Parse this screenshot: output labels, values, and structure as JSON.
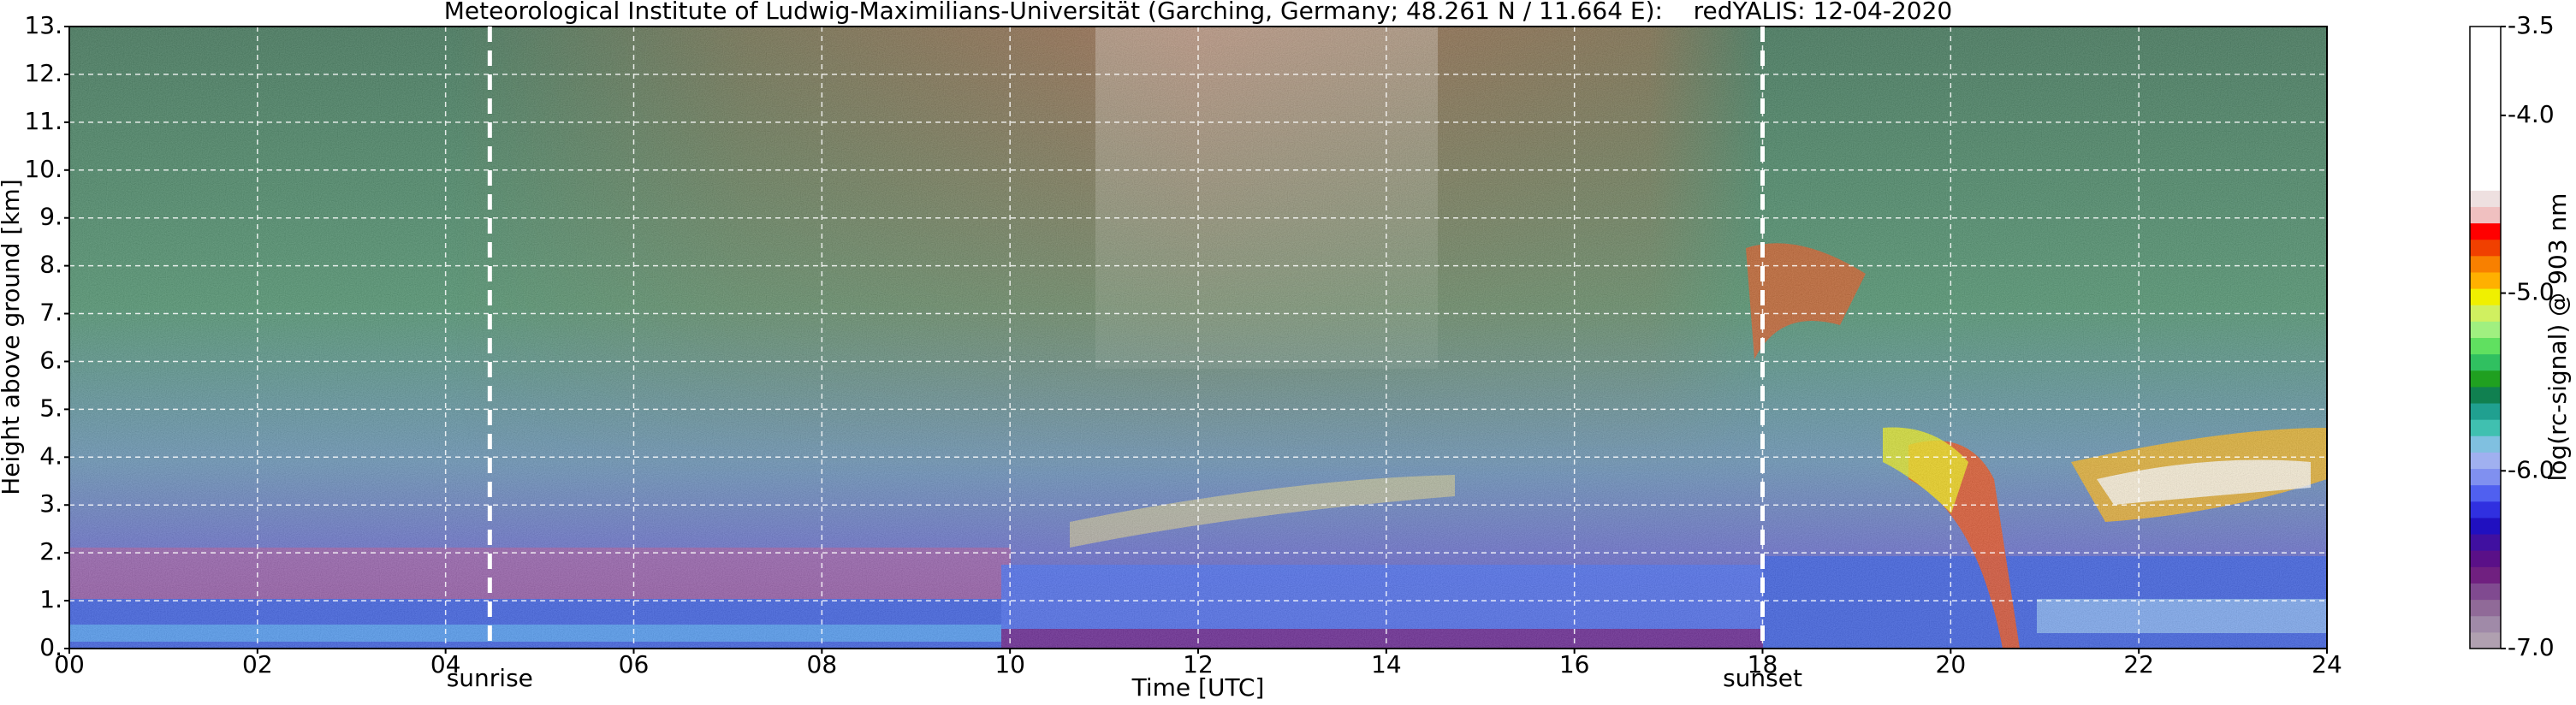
{
  "chart_data": {
    "type": "heatmap",
    "title": "Meteorological Institute of Ludwig-Maximilians-Universität (Garching, Germany; 48.261 N / 11.664 E):    redYALIS: 12-04-2020",
    "x_label": "Time [UTC]",
    "y_label": "Height above ground [km]",
    "xlim": [
      0,
      24
    ],
    "ylim": [
      0,
      13
    ],
    "xticks": [
      {
        "value": 0,
        "label": "00"
      },
      {
        "value": 2,
        "label": "02"
      },
      {
        "value": 4,
        "label": "04"
      },
      {
        "value": 6,
        "label": "06"
      },
      {
        "value": 8,
        "label": "08"
      },
      10,
      12,
      14,
      16,
      18,
      20,
      22,
      24
    ],
    "yticks": [
      {
        "value": 0,
        "label": "0."
      },
      {
        "value": 1,
        "label": "1."
      },
      {
        "value": 2,
        "label": "2."
      },
      {
        "value": 3,
        "label": "3."
      },
      {
        "value": 4,
        "label": "4."
      },
      {
        "value": 5,
        "label": "5."
      },
      {
        "value": 6,
        "label": "6."
      },
      {
        "value": 7,
        "label": "7."
      },
      {
        "value": 8,
        "label": "8."
      },
      {
        "value": 9,
        "label": "9."
      },
      {
        "value": 10,
        "label": "10."
      },
      {
        "value": 11,
        "label": "11."
      },
      {
        "value": 12,
        "label": "12."
      },
      {
        "value": 13,
        "label": "13."
      }
    ],
    "grid": true,
    "annotations": [
      {
        "label": "sunrise",
        "x": 4.47
      },
      {
        "label": "sunset",
        "x": 18.0
      }
    ],
    "colorbar": {
      "label": "log(rc-signal) @ 903 nm",
      "lim": [
        -7.0,
        -3.5
      ],
      "ticks": [
        {
          "value": -7,
          "label": "-7.0"
        },
        {
          "value": -6,
          "label": "-6.0"
        },
        {
          "value": -5,
          "label": "-5.0"
        },
        {
          "value": -4,
          "label": "-4.0"
        },
        -3.5
      ],
      "colors": [
        "#b0a0b0",
        "#a08aa8",
        "#906a98",
        "#804a90",
        "#702080",
        "#5a1088",
        "#4010a0",
        "#2010c0",
        "#3030e0",
        "#5060f0",
        "#8090f0",
        "#a0b0f0",
        "#80c0e0",
        "#40c0b0",
        "#20a090",
        "#108050",
        "#20a020",
        "#30c060",
        "#60e060",
        "#a0f080",
        "#d0f060",
        "#f0f000",
        "#ffb000",
        "#f88000",
        "#f04000",
        "#ff0000",
        "#f0c0c0",
        "#eee0e0",
        "#ffffff",
        "#ffffff",
        "#ffffff",
        "#ffffff",
        "#ffffff",
        "#ffffff",
        "#ffffff",
        "#ffffff",
        "#ffffff",
        "#ffffff"
      ]
    }
  }
}
